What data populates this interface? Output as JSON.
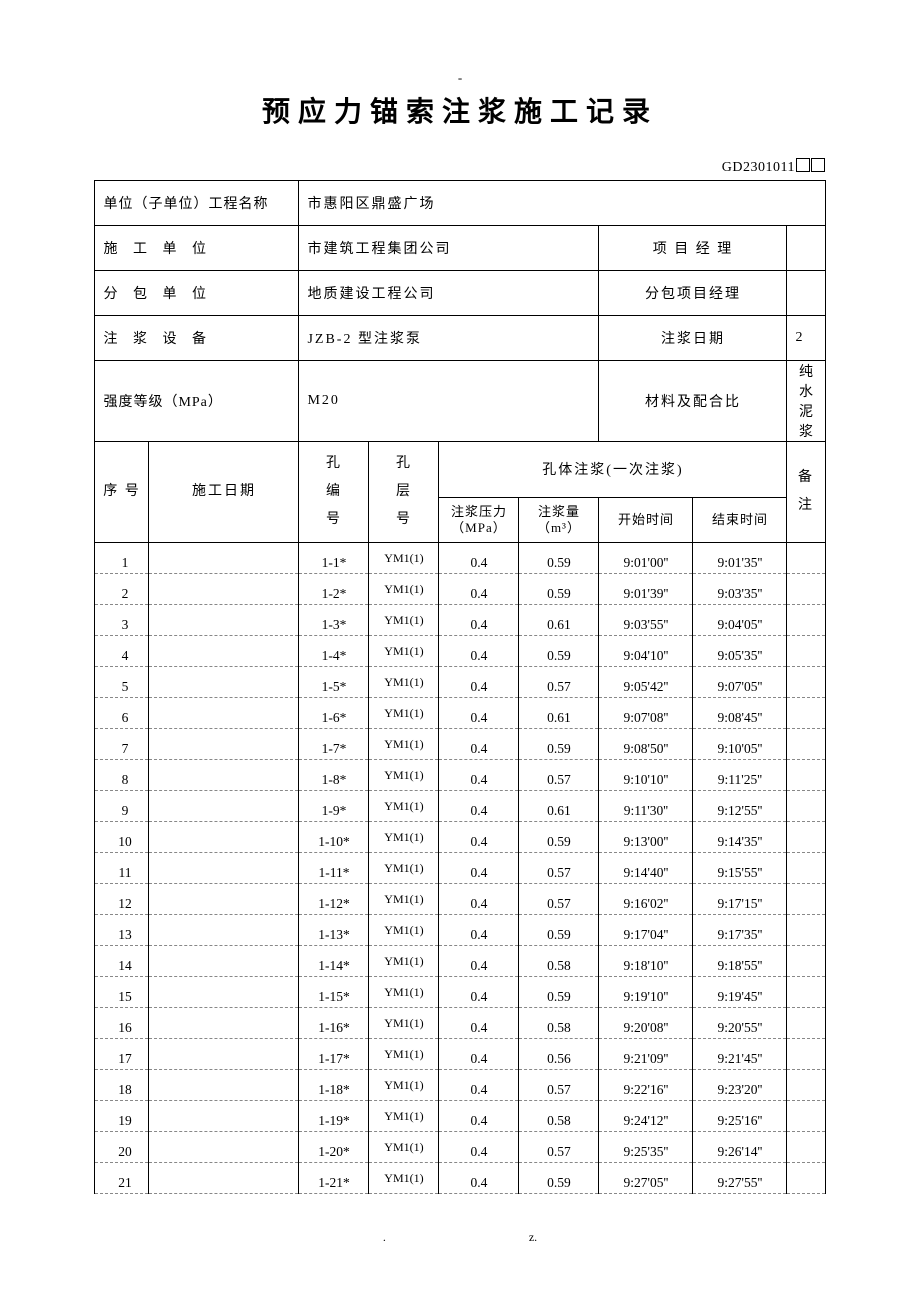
{
  "docNumber": "GD2301011",
  "title": "预应力锚索注浆施工记录",
  "header": {
    "projectLabel": "单位（子单位）工程名称",
    "projectValue": "市惠阳区鼎盛广场",
    "contractorLabel": "施 工 单 位",
    "contractorValue": "市建筑工程集团公司",
    "pmLabel": "项 目   经 理",
    "pmValue": "",
    "subLabel": "分 包 单 位",
    "subValue": "地质建设工程公司",
    "subPmLabel": "分包项目经理",
    "subPmValue": "",
    "equipLabel": "注 浆 设 备",
    "equipValue": "JZB-2 型注浆泵",
    "dateLabel": "注浆日期",
    "dateValue": "2",
    "gradeLabel": "强度等级（MPa）",
    "gradeValue": "M20",
    "mixLabel": "材料及配合比",
    "mixValue": "纯水泥浆"
  },
  "cols": {
    "seq": "序 号",
    "date": "施工日期",
    "holeNo": "孔编号",
    "layerNo": "孔层号",
    "holeNoL1": "孔",
    "holeNoL2": "编",
    "holeNoL3": "号",
    "layerNoL1": "孔",
    "layerNoL2": "层",
    "layerNoL3": "号",
    "groutGroup": "孔体注浆(一次注浆)",
    "pressure": "注浆压力",
    "pressureUnit": "（MPa）",
    "volume": "注浆量",
    "volumeUnit": "（m³）",
    "start": "开始时间",
    "end": "结束时间",
    "remark": "备注",
    "remarkL1": "备",
    "remarkL2": "注"
  },
  "rows": [
    {
      "seq": "1",
      "date": "",
      "hole": "1-1*",
      "layer": "YM1(1)",
      "p": "0.4",
      "v": "0.59",
      "s": "9:01'00''",
      "e": "9:01'35''",
      "r": ""
    },
    {
      "seq": "2",
      "date": "",
      "hole": "1-2*",
      "layer": "YM1(1)",
      "p": "0.4",
      "v": "0.59",
      "s": "9:01'39''",
      "e": "9:03'35''",
      "r": ""
    },
    {
      "seq": "3",
      "date": "",
      "hole": "1-3*",
      "layer": "YM1(1)",
      "p": "0.4",
      "v": "0.61",
      "s": "9:03'55''",
      "e": "9:04'05''",
      "r": ""
    },
    {
      "seq": "4",
      "date": "",
      "hole": "1-4*",
      "layer": "YM1(1)",
      "p": "0.4",
      "v": "0.59",
      "s": "9:04'10''",
      "e": "9:05'35''",
      "r": ""
    },
    {
      "seq": "5",
      "date": "",
      "hole": "1-5*",
      "layer": "YM1(1)",
      "p": "0.4",
      "v": "0.57",
      "s": "9:05'42''",
      "e": "9:07'05''",
      "r": ""
    },
    {
      "seq": "6",
      "date": "",
      "hole": "1-6*",
      "layer": "YM1(1)",
      "p": "0.4",
      "v": "0.61",
      "s": "9:07'08''",
      "e": "9:08'45''",
      "r": ""
    },
    {
      "seq": "7",
      "date": "",
      "hole": "1-7*",
      "layer": "YM1(1)",
      "p": "0.4",
      "v": "0.59",
      "s": "9:08'50''",
      "e": "9:10'05''",
      "r": ""
    },
    {
      "seq": "8",
      "date": "",
      "hole": "1-8*",
      "layer": "YM1(1)",
      "p": "0.4",
      "v": "0.57",
      "s": "9:10'10''",
      "e": "9:11'25''",
      "r": ""
    },
    {
      "seq": "9",
      "date": "",
      "hole": "1-9*",
      "layer": "YM1(1)",
      "p": "0.4",
      "v": "0.61",
      "s": "9:11'30''",
      "e": "9:12'55''",
      "r": ""
    },
    {
      "seq": "10",
      "date": "",
      "hole": "1-10*",
      "layer": "YM1(1)",
      "p": "0.4",
      "v": "0.59",
      "s": "9:13'00''",
      "e": "9:14'35''",
      "r": ""
    },
    {
      "seq": "11",
      "date": "",
      "hole": "1-11*",
      "layer": "YM1(1)",
      "p": "0.4",
      "v": "0.57",
      "s": "9:14'40''",
      "e": "9:15'55''",
      "r": ""
    },
    {
      "seq": "12",
      "date": "",
      "hole": "1-12*",
      "layer": "YM1(1)",
      "p": "0.4",
      "v": "0.57",
      "s": "9:16'02''",
      "e": "9:17'15''",
      "r": ""
    },
    {
      "seq": "13",
      "date": "",
      "hole": "1-13*",
      "layer": "YM1(1)",
      "p": "0.4",
      "v": "0.59",
      "s": "9:17'04''",
      "e": "9:17'35''",
      "r": ""
    },
    {
      "seq": "14",
      "date": "",
      "hole": "1-14*",
      "layer": "YM1(1)",
      "p": "0.4",
      "v": "0.58",
      "s": "9:18'10''",
      "e": "9:18'55''",
      "r": ""
    },
    {
      "seq": "15",
      "date": "",
      "hole": "1-15*",
      "layer": "YM1(1)",
      "p": "0.4",
      "v": "0.59",
      "s": "9:19'10''",
      "e": "9:19'45''",
      "r": ""
    },
    {
      "seq": "16",
      "date": "",
      "hole": "1-16*",
      "layer": "YM1(1)",
      "p": "0.4",
      "v": "0.58",
      "s": "9:20'08''",
      "e": "9:20'55''",
      "r": ""
    },
    {
      "seq": "17",
      "date": "",
      "hole": "1-17*",
      "layer": "YM1(1)",
      "p": "0.4",
      "v": "0.56",
      "s": "9:21'09''",
      "e": "9:21'45''",
      "r": ""
    },
    {
      "seq": "18",
      "date": "",
      "hole": "1-18*",
      "layer": "YM1(1)",
      "p": "0.4",
      "v": "0.57",
      "s": "9:22'16''",
      "e": "9:23'20''",
      "r": ""
    },
    {
      "seq": "19",
      "date": "",
      "hole": "1-19*",
      "layer": "YM1(1)",
      "p": "0.4",
      "v": "0.58",
      "s": "9:24'12''",
      "e": "9:25'16''",
      "r": ""
    },
    {
      "seq": "20",
      "date": "",
      "hole": "1-20*",
      "layer": "YM1(1)",
      "p": "0.4",
      "v": "0.57",
      "s": "9:25'35''",
      "e": "9:26'14''",
      "r": ""
    },
    {
      "seq": "21",
      "date": "",
      "hole": "1-21*",
      "layer": "YM1(1)",
      "p": "0.4",
      "v": "0.59",
      "s": "9:27'05''",
      "e": "9:27'55''",
      "r": ""
    }
  ],
  "footer": {
    "dot": ".",
    "z": "z."
  }
}
